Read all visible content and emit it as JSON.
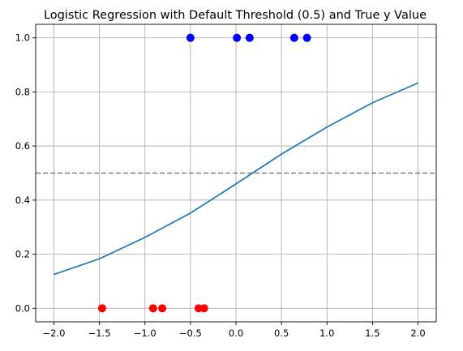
{
  "chart_data": {
    "type": "scatter",
    "title": "Logistic Regression with Default Threshold (0.5) and True y Value",
    "xlabel": "",
    "ylabel": "",
    "xlim": [
      -2.2,
      2.2
    ],
    "ylim": [
      -0.05,
      1.05
    ],
    "grid": true,
    "x_ticks": [
      -2.0,
      -1.5,
      -1.0,
      -0.5,
      0.0,
      0.5,
      1.0,
      1.5,
      2.0
    ],
    "x_tick_labels": [
      "−2.0",
      "−1.5",
      "−1.0",
      "−0.5",
      "0.0",
      "0.5",
      "1.0",
      "1.5",
      "2.0"
    ],
    "y_ticks": [
      0.0,
      0.2,
      0.4,
      0.6,
      0.8,
      1.0
    ],
    "y_tick_labels": [
      "0.0",
      "0.2",
      "0.4",
      "0.6",
      "0.8",
      "1.0"
    ],
    "threshold": {
      "value": 0.5,
      "color": "#808080",
      "style": "dashed"
    },
    "curve": {
      "type": "line",
      "color": "#1f77b4",
      "x": [
        -2.0,
        -1.5,
        -1.0,
        -0.5,
        0.0,
        0.5,
        1.0,
        1.5,
        2.0
      ],
      "y": [
        0.125,
        0.183,
        0.262,
        0.352,
        0.46,
        0.57,
        0.67,
        0.76,
        0.833
      ]
    },
    "series": [
      {
        "color": "#ff0000",
        "points": [
          [
            -1.47,
            0.0
          ],
          [
            -0.91,
            0.0
          ],
          [
            -0.81,
            0.0
          ],
          [
            -0.41,
            0.0
          ],
          [
            -0.35,
            0.0
          ]
        ]
      },
      {
        "color": "#0000ff",
        "points": [
          [
            -0.5,
            1.0
          ],
          [
            0.01,
            1.0
          ],
          [
            0.15,
            1.0
          ],
          [
            0.64,
            1.0
          ],
          [
            0.78,
            1.0
          ]
        ]
      }
    ]
  }
}
